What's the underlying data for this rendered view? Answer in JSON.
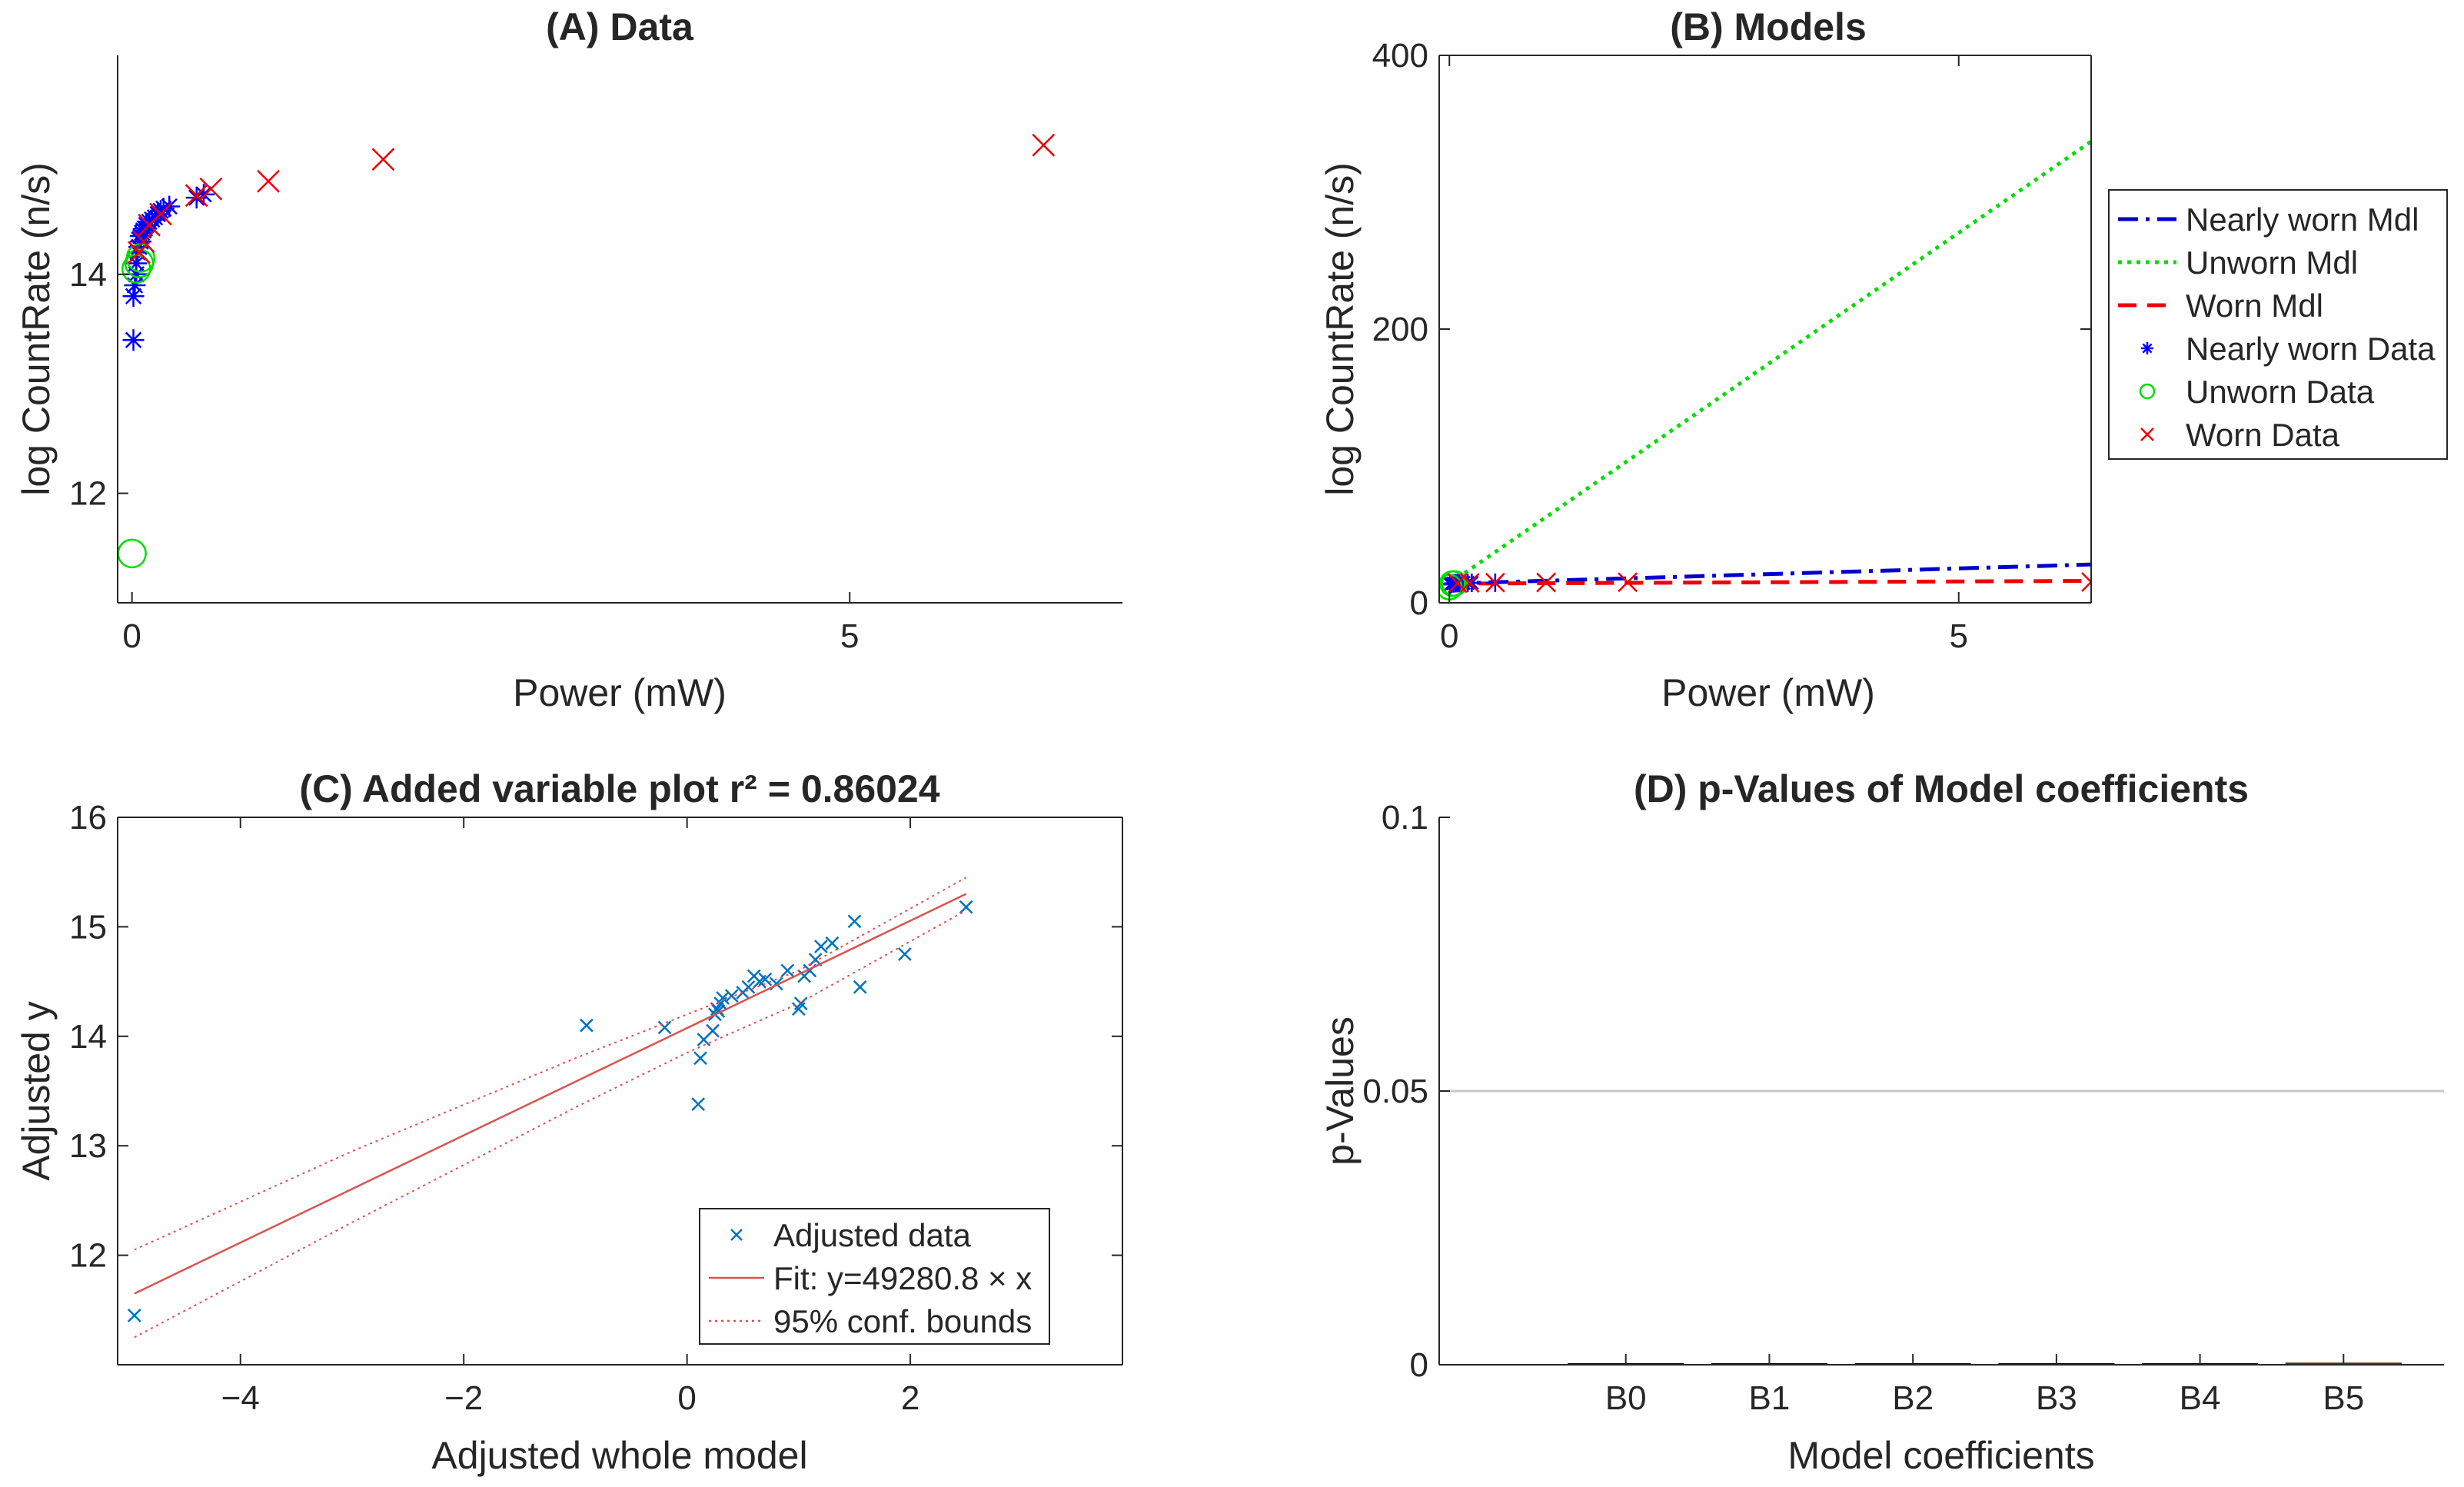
{
  "chart_data": [
    {
      "id": "A",
      "type": "scatter",
      "title": "(A) Data",
      "xlabel": "Power (mW)",
      "ylabel": "log CountRate (n/s)",
      "xlim": [
        -0.1,
        6.9
      ],
      "ylim": [
        11,
        16
      ],
      "xticks": [
        0,
        5
      ],
      "yticks": [
        12,
        14
      ],
      "xticklabels": [
        "0",
        "5"
      ],
      "yticklabels": [
        "12",
        "14"
      ],
      "grid": false,
      "legend": null,
      "series": [
        {
          "key": "nw",
          "marker": "asterisk",
          "color": "#0000ff",
          "points": [
            [
              0.01,
              13.4
            ],
            [
              0.01,
              13.8
            ],
            [
              0.02,
              13.9
            ],
            [
              0.03,
              14.0
            ],
            [
              0.03,
              14.1
            ],
            [
              0.04,
              14.2
            ],
            [
              0.05,
              14.25
            ],
            [
              0.06,
              14.3
            ],
            [
              0.06,
              14.35
            ],
            [
              0.07,
              14.38
            ],
            [
              0.08,
              14.4
            ],
            [
              0.09,
              14.42
            ],
            [
              0.1,
              14.45
            ],
            [
              0.12,
              14.48
            ],
            [
              0.14,
              14.5
            ],
            [
              0.16,
              14.52
            ],
            [
              0.18,
              14.55
            ],
            [
              0.2,
              14.58
            ],
            [
              0.22,
              14.6
            ],
            [
              0.26,
              14.62
            ],
            [
              0.45,
              14.7
            ],
            [
              0.5,
              14.73
            ]
          ]
        },
        {
          "key": "un",
          "marker": "circle",
          "color": "#00dd00",
          "points": [
            [
              0.0,
              11.45
            ],
            [
              0.03,
              14.05
            ],
            [
              0.05,
              14.1
            ],
            [
              0.06,
              14.15
            ]
          ]
        },
        {
          "key": "w",
          "marker": "x",
          "color": "#ee0000",
          "points": [
            [
              0.05,
              14.2
            ],
            [
              0.08,
              14.3
            ],
            [
              0.12,
              14.45
            ],
            [
              0.2,
              14.55
            ],
            [
              0.45,
              14.72
            ],
            [
              0.55,
              14.78
            ],
            [
              0.95,
              14.85
            ],
            [
              1.75,
              15.05
            ],
            [
              6.35,
              15.18
            ]
          ]
        }
      ]
    },
    {
      "id": "B",
      "type": "line",
      "title": "(B) Models",
      "xlabel": "Power (mW)",
      "ylabel": "log CountRate (n/s)",
      "xlim": [
        -0.1,
        6.3
      ],
      "ylim": [
        0,
        400
      ],
      "xticks": [
        0,
        5
      ],
      "yticks": [
        0,
        200,
        400
      ],
      "xticklabels": [
        "0",
        "5"
      ],
      "yticklabels": [
        "0",
        "200",
        "400"
      ],
      "grid": false,
      "legend": {
        "placement": "outside-right",
        "entries": [
          {
            "key": "nw_mdl",
            "label": "Nearly worn Mdl",
            "color": "#0000cc",
            "style": "dashdot"
          },
          {
            "key": "un_mdl",
            "label": "Unworn Mdl",
            "color": "#00dd00",
            "style": "dotted"
          },
          {
            "key": "w_mdl",
            "label": "Worn Mdl",
            "color": "#ee0000",
            "style": "dashed"
          },
          {
            "key": "nw_data",
            "label": "Nearly worn Data",
            "color": "#0000ff",
            "style": "marker-asterisk"
          },
          {
            "key": "un_data",
            "label": "Unworn Data",
            "color": "#00dd00",
            "style": "marker-circle"
          },
          {
            "key": "w_data",
            "label": "Worn Data",
            "color": "#ee0000",
            "style": "marker-x"
          }
        ]
      },
      "series": [
        {
          "key": "nw_mdl",
          "type": "line",
          "x": [
            0,
            6.3
          ],
          "y": [
            14,
            28
          ]
        },
        {
          "key": "un_mdl",
          "type": "line",
          "x": [
            0,
            6.3
          ],
          "y": [
            14,
            337
          ]
        },
        {
          "key": "w_mdl",
          "type": "line",
          "x": [
            0,
            6.3
          ],
          "y": [
            14,
            16
          ]
        },
        {
          "key": "nw_data",
          "type": "scatter",
          "points": [
            [
              0.01,
              13.4
            ],
            [
              0.02,
              13.9
            ],
            [
              0.04,
              14.2
            ],
            [
              0.06,
              14.3
            ],
            [
              0.08,
              14.4
            ],
            [
              0.1,
              14.45
            ],
            [
              0.14,
              14.5
            ],
            [
              0.18,
              14.55
            ],
            [
              0.22,
              14.6
            ],
            [
              0.45,
              14.7
            ]
          ]
        },
        {
          "key": "un_data",
          "type": "scatter",
          "points": [
            [
              0.0,
              11.45
            ],
            [
              0.03,
              14.05
            ],
            [
              0.05,
              14.1
            ]
          ]
        },
        {
          "key": "w_data",
          "type": "scatter",
          "points": [
            [
              0.08,
              14.3
            ],
            [
              0.2,
              14.55
            ],
            [
              0.45,
              14.72
            ],
            [
              0.95,
              14.85
            ],
            [
              1.75,
              15.05
            ],
            [
              6.3,
              15.18
            ]
          ]
        }
      ]
    },
    {
      "id": "C",
      "type": "scatter",
      "title": "(C) Added variable plot r² = 0.86024",
      "xlabel": "Adjusted whole model",
      "ylabel": "Adjusted y",
      "xlim": [
        -5.1,
        3.9
      ],
      "ylim": [
        11,
        16
      ],
      "xticks": [
        -4,
        -2,
        0,
        2
      ],
      "yticks": [
        12,
        13,
        14,
        15,
        16
      ],
      "xticklabels": [
        "−4",
        "−2",
        "0",
        "2"
      ],
      "yticklabels": [
        "12",
        "13",
        "14",
        "15",
        "16"
      ],
      "grid": false,
      "legend": {
        "placement": "bottom-right",
        "entries": [
          {
            "key": "adj",
            "label": "Adjusted data",
            "color": "#0072bd",
            "style": "marker-x"
          },
          {
            "key": "fit",
            "label": "Fit: y=49280.8 × x",
            "color": "#d9534f",
            "style": "solid"
          },
          {
            "key": "bounds",
            "label": "95% conf. bounds",
            "color": "#d9534f",
            "style": "dotted"
          }
        ]
      },
      "series": [
        {
          "key": "adj",
          "type": "scatter",
          "points": [
            [
              -4.95,
              11.45
            ],
            [
              -0.9,
              14.1
            ],
            [
              -0.2,
              14.08
            ],
            [
              0.1,
              13.38
            ],
            [
              0.12,
              13.8
            ],
            [
              0.15,
              13.97
            ],
            [
              0.23,
              14.05
            ],
            [
              0.25,
              14.2
            ],
            [
              0.27,
              14.25
            ],
            [
              0.28,
              14.23
            ],
            [
              0.3,
              14.3
            ],
            [
              0.32,
              14.35
            ],
            [
              0.4,
              14.37
            ],
            [
              0.5,
              14.4
            ],
            [
              0.55,
              14.45
            ],
            [
              0.6,
              14.55
            ],
            [
              0.65,
              14.5
            ],
            [
              0.7,
              14.52
            ],
            [
              0.8,
              14.48
            ],
            [
              0.9,
              14.6
            ],
            [
              1.0,
              14.25
            ],
            [
              1.02,
              14.3
            ],
            [
              1.05,
              14.55
            ],
            [
              1.1,
              14.6
            ],
            [
              1.15,
              14.7
            ],
            [
              1.2,
              14.82
            ],
            [
              1.3,
              14.85
            ],
            [
              1.5,
              15.05
            ],
            [
              1.55,
              14.45
            ],
            [
              1.95,
              14.75
            ],
            [
              2.5,
              15.18
            ]
          ]
        },
        {
          "key": "fit",
          "type": "line",
          "x": [
            -4.95,
            2.5
          ],
          "y": [
            11.65,
            15.3
          ]
        },
        {
          "key": "bounds_upper",
          "type": "line",
          "style": "dotted",
          "x": [
            -4.95,
            -3,
            -1,
            0,
            1,
            2.5
          ],
          "y": [
            12.05,
            12.95,
            13.8,
            14.2,
            14.6,
            15.45
          ]
        },
        {
          "key": "bounds_lower",
          "type": "line",
          "style": "dotted",
          "x": [
            -4.95,
            -3,
            -1,
            0,
            1,
            2.5
          ],
          "y": [
            11.25,
            12.3,
            13.35,
            13.85,
            14.3,
            15.15
          ]
        }
      ]
    },
    {
      "id": "D",
      "type": "bar",
      "title": "(D) p-Values of Model coefficients",
      "xlabel": "Model coefficients",
      "ylabel": "p-Values",
      "categories": [
        "B0",
        "B1",
        "B2",
        "B3",
        "B4",
        "B5"
      ],
      "values": [
        0,
        0,
        0,
        0,
        0,
        0.0003
      ],
      "ylim": [
        0,
        0.1
      ],
      "yticks": [
        0,
        0.05,
        0.1
      ],
      "yticklabels": [
        "0",
        "0.05",
        "0.1"
      ],
      "reference_line": 0.05,
      "grid": false,
      "legend": null
    }
  ]
}
